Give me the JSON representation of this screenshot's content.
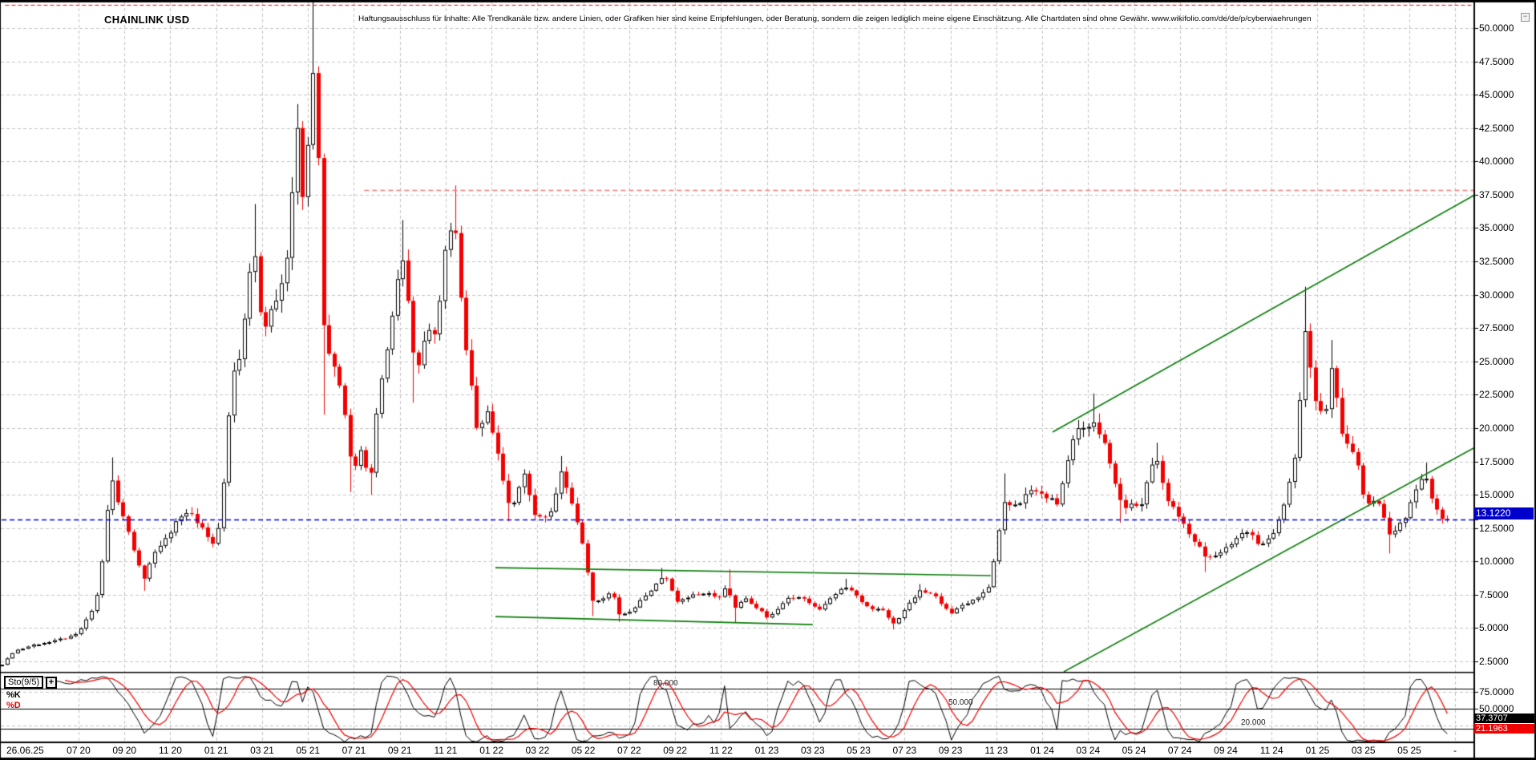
{
  "header": {
    "title": "CHAINLINK USD",
    "disclaimer": "Haftungsausschluss für Inhalte: Alle Trendkanäle bzw. andere Linien, oder Grafiken hier sind keine Empfehlungen, oder Beratung, sondern die zeigen lediglich meine eigene Einschätzung. Alle Chartdaten sind ohne Gewähr.  www.wikifolio.com/de/de/p/cyberwaehrungen",
    "collapse_icon": "−"
  },
  "axis": {
    "price_ticks": [
      {
        "label": "50.0000",
        "v": 50.0
      },
      {
        "label": "47.5000",
        "v": 47.5
      },
      {
        "label": "45.0000",
        "v": 45.0
      },
      {
        "label": "42.5000",
        "v": 42.5
      },
      {
        "label": "40.0000",
        "v": 40.0
      },
      {
        "label": "37.5000",
        "v": 37.5
      },
      {
        "label": "35.0000",
        "v": 35.0
      },
      {
        "label": "32.5000",
        "v": 32.5
      },
      {
        "label": "30.0000",
        "v": 30.0
      },
      {
        "label": "27.5000",
        "v": 27.5
      },
      {
        "label": "25.0000",
        "v": 25.0
      },
      {
        "label": "22.5000",
        "v": 22.5
      },
      {
        "label": "20.0000",
        "v": 20.0
      },
      {
        "label": "17.5000",
        "v": 17.5
      },
      {
        "label": "15.0000",
        "v": 15.0
      },
      {
        "label": "12.5000",
        "v": 12.5
      },
      {
        "label": "10.0000",
        "v": 10.0
      },
      {
        "label": "7.5000",
        "v": 7.5
      },
      {
        "label": "5.0000",
        "v": 5.0
      },
      {
        "label": "2.5000",
        "v": 2.5
      }
    ],
    "sto_ticks": [
      {
        "label": "75.0000",
        "v": 75
      },
      {
        "label": "50.0000",
        "v": 50
      }
    ],
    "price_label": {
      "text": "13.1220",
      "value": 13.122
    },
    "k_value": {
      "text": "37.3707"
    },
    "d_value": {
      "text": "21.1963"
    }
  },
  "footer": {
    "first_date": "26.06.25",
    "dates": [
      [
        "07",
        "20"
      ],
      [
        "09",
        "20"
      ],
      [
        "11",
        "20"
      ],
      [
        "01",
        "21"
      ],
      [
        "03",
        "21"
      ],
      [
        "05",
        "21"
      ],
      [
        "07",
        "21"
      ],
      [
        "09",
        "21"
      ],
      [
        "11",
        "21"
      ],
      [
        "01",
        "22"
      ],
      [
        "03",
        "22"
      ],
      [
        "05",
        "22"
      ],
      [
        "07",
        "22"
      ],
      [
        "09",
        "22"
      ],
      [
        "11",
        "22"
      ],
      [
        "01",
        "23"
      ],
      [
        "03",
        "23"
      ],
      [
        "05",
        "23"
      ],
      [
        "07",
        "23"
      ],
      [
        "09",
        "23"
      ],
      [
        "11",
        "23"
      ],
      [
        "01",
        "24"
      ],
      [
        "03",
        "24"
      ],
      [
        "05",
        "24"
      ],
      [
        "07",
        "24"
      ],
      [
        "09",
        "24"
      ],
      [
        "11",
        "24"
      ],
      [
        "01",
        "25"
      ],
      [
        "03",
        "25"
      ],
      [
        "05",
        "25"
      ]
    ],
    "end_dash": "-"
  },
  "panels": {
    "sto": {
      "name": "Sto(9/5)",
      "plus": "+",
      "k_label": "%K",
      "d_label": "%D",
      "level_labels": [
        "80.000",
        "50.000",
        "20.000"
      ],
      "levels": [
        80,
        50,
        20
      ]
    }
  },
  "chart_data": {
    "type": "candlestick+stochastic",
    "symbol": "CHAINLINK USD",
    "x_axis": {
      "start": "2020-03-20",
      "end": "2025-06-26",
      "tick_interval_months": 2,
      "grid": true
    },
    "y_axis": {
      "min": 2.5,
      "max": 50,
      "step": 2.5,
      "grid": true
    },
    "stochastic": {
      "period": 9,
      "smooth": 5,
      "k_last": 37.3707,
      "d_last": 21.1963,
      "levels": [
        80,
        50,
        20
      ]
    },
    "last_price": 13.122,
    "m_start": -3.35,
    "m_end": 59.85,
    "anchors": [
      [
        -3.35,
        2.25
      ],
      [
        -2.8,
        3.3
      ],
      [
        -2.0,
        3.7
      ],
      [
        -1.2,
        4.0
      ],
      [
        -0.5,
        4.3
      ],
      [
        0,
        4.65
      ],
      [
        0.5,
        6.1
      ],
      [
        0.9,
        8.0
      ],
      [
        1.25,
        13.8
      ],
      [
        1.5,
        16.2
      ],
      [
        1.8,
        14.0
      ],
      [
        2.2,
        12.0
      ],
      [
        2.5,
        10.2
      ],
      [
        2.85,
        8.8
      ],
      [
        3.3,
        10.6
      ],
      [
        3.8,
        11.8
      ],
      [
        4.3,
        13.0
      ],
      [
        4.8,
        13.9
      ],
      [
        5.3,
        12.6
      ],
      [
        5.7,
        11.6
      ],
      [
        6.0,
        11.3
      ],
      [
        6.3,
        15.8
      ],
      [
        6.7,
        24.0
      ],
      [
        7.1,
        26.0
      ],
      [
        7.6,
        34.0
      ],
      [
        8.0,
        27.5
      ],
      [
        8.5,
        29.0
      ],
      [
        9.0,
        31.5
      ],
      [
        9.5,
        42.5
      ],
      [
        9.8,
        36.5
      ],
      [
        10.3,
        49.0
      ],
      [
        10.7,
        26.0
      ],
      [
        11.0,
        25.5
      ],
      [
        11.5,
        22.5
      ],
      [
        11.9,
        16.5
      ],
      [
        12.3,
        18.5
      ],
      [
        12.7,
        15.8
      ],
      [
        13.1,
        23.0
      ],
      [
        13.6,
        27.5
      ],
      [
        14.05,
        33.0
      ],
      [
        14.4,
        29.5
      ],
      [
        14.7,
        23.5
      ],
      [
        15.1,
        27.0
      ],
      [
        15.6,
        27.5
      ],
      [
        16.0,
        33.5
      ],
      [
        16.35,
        36.0
      ],
      [
        16.9,
        25.5
      ],
      [
        17.4,
        19.5
      ],
      [
        17.8,
        21.5
      ],
      [
        18.0,
        19.8
      ],
      [
        18.5,
        16.2
      ],
      [
        18.8,
        13.8
      ],
      [
        19.5,
        16.8
      ],
      [
        19.8,
        13.5
      ],
      [
        20.5,
        13.2
      ],
      [
        21.0,
        16.8
      ],
      [
        21.5,
        14.2
      ],
      [
        22.0,
        11.2
      ],
      [
        22.35,
        7.0
      ],
      [
        22.8,
        7.1
      ],
      [
        23.2,
        7.9
      ],
      [
        23.55,
        6.0
      ],
      [
        24.0,
        6.2
      ],
      [
        24.6,
        7.2
      ],
      [
        25.1,
        8.2
      ],
      [
        25.5,
        9.0
      ],
      [
        26.1,
        7.0
      ],
      [
        26.7,
        7.4
      ],
      [
        27.3,
        7.7
      ],
      [
        27.9,
        7.2
      ],
      [
        28.3,
        8.5
      ],
      [
        28.5,
        6.2
      ],
      [
        29.0,
        7.3
      ],
      [
        29.5,
        6.6
      ],
      [
        30.0,
        5.8
      ],
      [
        30.2,
        6.0
      ],
      [
        30.8,
        7.1
      ],
      [
        31.5,
        7.4
      ],
      [
        32.2,
        6.3
      ],
      [
        32.8,
        7.3
      ],
      [
        33.5,
        8.2
      ],
      [
        34.3,
        6.6
      ],
      [
        35.0,
        6.4
      ],
      [
        35.5,
        5.3
      ],
      [
        36.1,
        6.6
      ],
      [
        36.7,
        7.9
      ],
      [
        37.3,
        7.4
      ],
      [
        38.0,
        6.1
      ],
      [
        38.7,
        6.9
      ],
      [
        39.3,
        7.4
      ],
      [
        39.65,
        8.0
      ],
      [
        40.35,
        14.5
      ],
      [
        40.65,
        14.0
      ],
      [
        41.5,
        15.3
      ],
      [
        42.15,
        15.0
      ],
      [
        42.65,
        14.2
      ],
      [
        43.35,
        19.5
      ],
      [
        44.3,
        20.5
      ],
      [
        44.8,
        18.2
      ],
      [
        45.5,
        14.0
      ],
      [
        46.3,
        14.3
      ],
      [
        46.9,
        18.0
      ],
      [
        47.5,
        14.5
      ],
      [
        48.1,
        12.9
      ],
      [
        49.15,
        10.2
      ],
      [
        50.0,
        10.9
      ],
      [
        50.8,
        12.4
      ],
      [
        51.5,
        11.2
      ],
      [
        52.2,
        12.3
      ],
      [
        52.65,
        15.2
      ],
      [
        53.0,
        17.8
      ],
      [
        53.4,
        25.5
      ],
      [
        53.5,
        28.5
      ],
      [
        53.8,
        22.5
      ],
      [
        54.3,
        20.5
      ],
      [
        54.65,
        25.0
      ],
      [
        55.1,
        19.0
      ],
      [
        55.65,
        18.0
      ],
      [
        56.1,
        14.2
      ],
      [
        56.65,
        14.5
      ],
      [
        57.2,
        11.8
      ],
      [
        57.8,
        13.3
      ],
      [
        58.35,
        15.8
      ],
      [
        58.7,
        16.3
      ],
      [
        59.15,
        14.0
      ],
      [
        59.5,
        13.0
      ],
      [
        59.85,
        13.122
      ]
    ],
    "wicks_high": [
      [
        1.5,
        17.8
      ],
      [
        7.6,
        36.8
      ],
      [
        9.5,
        44.3
      ],
      [
        10.3,
        52.9
      ],
      [
        14.05,
        35.6
      ],
      [
        16.35,
        38.2
      ],
      [
        21.0,
        17.9
      ],
      [
        25.5,
        9.5
      ],
      [
        28.3,
        9.4
      ],
      [
        33.5,
        8.7
      ],
      [
        36.7,
        8.3
      ],
      [
        40.35,
        16.6
      ],
      [
        44.3,
        22.6
      ],
      [
        46.9,
        18.9
      ],
      [
        53.5,
        30.6
      ],
      [
        54.65,
        26.6
      ],
      [
        58.7,
        17.4
      ]
    ],
    "wicks_low": [
      [
        2.85,
        7.8
      ],
      [
        10.7,
        21.0
      ],
      [
        11.9,
        15.2
      ],
      [
        12.7,
        15.0
      ],
      [
        14.7,
        21.9
      ],
      [
        18.8,
        13.0
      ],
      [
        22.35,
        5.9
      ],
      [
        23.55,
        5.45
      ],
      [
        28.5,
        5.4
      ],
      [
        35.5,
        4.9
      ],
      [
        45.5,
        12.9
      ],
      [
        49.15,
        9.2
      ],
      [
        57.2,
        10.6
      ],
      [
        59.85,
        12.2
      ]
    ],
    "lines": {
      "horizontal": [
        {
          "name": "upper-alert-line",
          "price": 51.74,
          "color": "#ff0000",
          "dash": [
            5,
            3
          ],
          "width": 1.2,
          "m1": -3.2,
          "m2": 60.8
        },
        {
          "name": "resistance-line",
          "price": 37.85,
          "color": "#f37c7c",
          "dash": [
            6,
            4
          ],
          "width": 1.4,
          "m1": 12.45,
          "m2": 60.8
        },
        {
          "name": "current-price-line",
          "price": 13.122,
          "color": "#0000ee",
          "dash": [
            6,
            4
          ],
          "width": 1.3,
          "m1": -3.35,
          "m2": 60.8
        }
      ],
      "trend": [
        {
          "name": "range-top-line",
          "m1": 18.17,
          "p1": 9.53,
          "m2": 39.76,
          "p2": 8.93
        },
        {
          "name": "range-bottom-line",
          "m1": 18.17,
          "p1": 5.86,
          "m2": 32.0,
          "p2": 5.26
        },
        {
          "name": "channel-top-line",
          "m1": 42.45,
          "p1": 19.7,
          "m2": 60.8,
          "p2": 37.43
        },
        {
          "name": "channel-bottom-line",
          "m1": 42.94,
          "p1": 1.72,
          "m2": 60.8,
          "p2": 18.49
        }
      ],
      "trend_color": "#0b7d0b"
    }
  }
}
